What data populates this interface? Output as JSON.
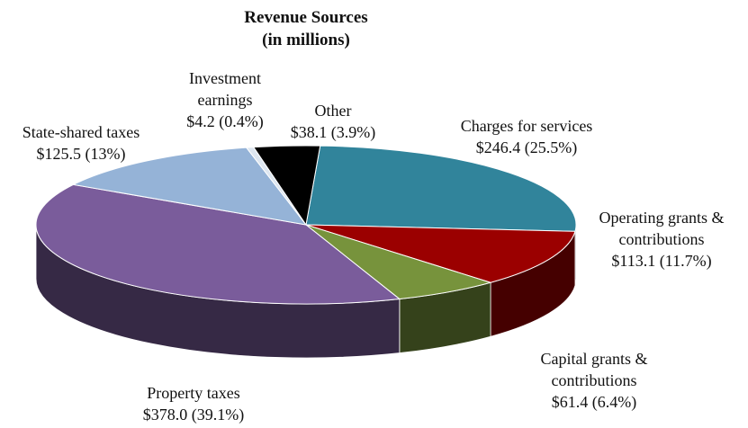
{
  "chart_data": {
    "type": "pie3d",
    "title": "Revenue Sources",
    "subtitle": "(in millions)",
    "categories": [
      "Charges for services",
      "Operating grants & contributions",
      "Capital grants & contributions",
      "Property taxes",
      "State-shared taxes",
      "Investment earnings",
      "Other"
    ],
    "values": [
      246.4,
      113.1,
      61.4,
      378.0,
      125.5,
      4.2,
      38.1
    ],
    "value_labels": [
      "$246.4 (25.5%)",
      "$113.1 (11.7%)",
      "$61.4 (6.4%)",
      "$378.0 (39.1%)",
      "$125.5 (13%)",
      "$4.2 (0.4%)",
      "$38.1 (3.9%)"
    ],
    "colors": [
      "#31849b",
      "#9b0000",
      "#77933c",
      "#7a5c9b",
      "#95b3d7",
      "#dde6f0",
      "#000000"
    ]
  }
}
